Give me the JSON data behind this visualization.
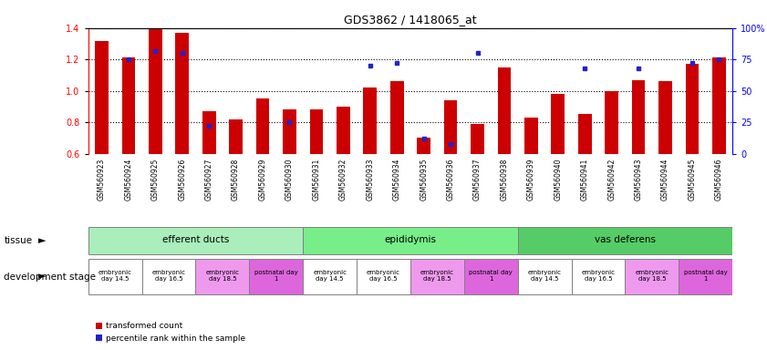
{
  "title": "GDS3862 / 1418065_at",
  "samples": [
    "GSM560923",
    "GSM560924",
    "GSM560925",
    "GSM560926",
    "GSM560927",
    "GSM560928",
    "GSM560929",
    "GSM560930",
    "GSM560931",
    "GSM560932",
    "GSM560933",
    "GSM560934",
    "GSM560935",
    "GSM560936",
    "GSM560937",
    "GSM560938",
    "GSM560939",
    "GSM560940",
    "GSM560941",
    "GSM560942",
    "GSM560943",
    "GSM560944",
    "GSM560945",
    "GSM560946"
  ],
  "transformed_count": [
    1.32,
    1.21,
    1.4,
    1.37,
    0.87,
    0.82,
    0.95,
    0.88,
    0.88,
    0.9,
    1.02,
    1.06,
    0.7,
    0.94,
    0.79,
    1.15,
    0.83,
    0.98,
    0.85,
    1.0,
    1.07,
    1.06,
    1.17,
    1.21
  ],
  "percentile_rank": [
    null,
    75,
    82,
    80,
    22,
    null,
    null,
    25,
    null,
    null,
    70,
    72,
    12,
    8,
    80,
    null,
    null,
    null,
    68,
    null,
    68,
    null,
    72,
    75
  ],
  "ylim_left": [
    0.6,
    1.4
  ],
  "ylim_right": [
    0,
    100
  ],
  "yticks_left": [
    0.6,
    0.8,
    1.0,
    1.2,
    1.4
  ],
  "yticks_right": [
    0,
    25,
    50,
    75,
    100
  ],
  "bar_color": "#cc0000",
  "percentile_color": "#2222cc",
  "grid_color": "#000000",
  "tissue_groups": [
    {
      "label": "efferent ducts",
      "start": 0,
      "end": 7,
      "color": "#aaeebb"
    },
    {
      "label": "epididymis",
      "start": 8,
      "end": 15,
      "color": "#77ee88"
    },
    {
      "label": "vas deferens",
      "start": 16,
      "end": 23,
      "color": "#55cc66"
    }
  ],
  "dev_stage_groups": [
    {
      "label": "embryonic\nday 14.5",
      "start": 0,
      "end": 1,
      "color": "#ffffff"
    },
    {
      "label": "embryonic\nday 16.5",
      "start": 2,
      "end": 3,
      "color": "#ffffff"
    },
    {
      "label": "embryonic\nday 18.5",
      "start": 4,
      "end": 5,
      "color": "#ee99ee"
    },
    {
      "label": "postnatal day\n1",
      "start": 6,
      "end": 7,
      "color": "#dd66dd"
    },
    {
      "label": "embryonic\nday 14.5",
      "start": 8,
      "end": 9,
      "color": "#ffffff"
    },
    {
      "label": "embryonic\nday 16.5",
      "start": 10,
      "end": 11,
      "color": "#ffffff"
    },
    {
      "label": "embryonic\nday 18.5",
      "start": 12,
      "end": 13,
      "color": "#ee99ee"
    },
    {
      "label": "postnatal day\n1",
      "start": 14,
      "end": 15,
      "color": "#dd66dd"
    },
    {
      "label": "embryonic\nday 14.5",
      "start": 16,
      "end": 17,
      "color": "#ffffff"
    },
    {
      "label": "embryonic\nday 16.5",
      "start": 18,
      "end": 19,
      "color": "#ffffff"
    },
    {
      "label": "embryonic\nday 18.5",
      "start": 20,
      "end": 21,
      "color": "#ee99ee"
    },
    {
      "label": "postnatal day\n1",
      "start": 22,
      "end": 23,
      "color": "#dd66dd"
    }
  ],
  "background_color": "#ffffff",
  "tick_area_color": "#cccccc",
  "legend_red_label": "transformed count",
  "legend_blue_label": "percentile rank within the sample",
  "tissue_label": "tissue",
  "dev_stage_label": "development stage"
}
